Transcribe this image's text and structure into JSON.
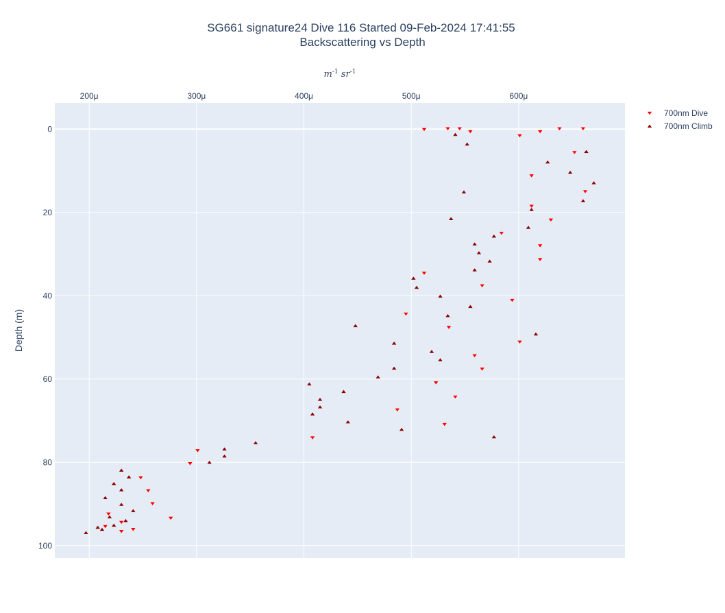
{
  "chart_data": {
    "type": "scatter",
    "title": "SG661 signature24 Dive 116 Started 09-Feb-2024 17:41:55",
    "subtitle": "Backscattering vs Depth",
    "xlabel": "m^{-1} sr^{-1}",
    "ylabel": "Depth (m)",
    "xlim": [
      0.000168,
      0.000699
    ],
    "ylim": [
      103,
      -6.3
    ],
    "x_ticks": [
      {
        "value": 0.0002,
        "label": "200μ"
      },
      {
        "value": 0.0003,
        "label": "300μ"
      },
      {
        "value": 0.0004,
        "label": "400μ"
      },
      {
        "value": 0.0005,
        "label": "500μ"
      },
      {
        "value": 0.0006,
        "label": "600μ"
      }
    ],
    "y_ticks": [
      {
        "value": 0,
        "label": "0"
      },
      {
        "value": 20,
        "label": "20"
      },
      {
        "value": 40,
        "label": "40"
      },
      {
        "value": 60,
        "label": "60"
      },
      {
        "value": 80,
        "label": "80"
      },
      {
        "value": 100,
        "label": "100"
      }
    ],
    "grid": true,
    "legend_position": "top-right",
    "x_axis_position": "top",
    "series": [
      {
        "name": "700nm Dive",
        "marker": "triangle-down",
        "color": "#ff0000",
        "points": [
          [
            0.000512,
            0.1
          ],
          [
            0.000534,
            -0.1
          ],
          [
            0.000545,
            -0.1
          ],
          [
            0.000555,
            0.6
          ],
          [
            0.00062,
            0.6
          ],
          [
            0.000638,
            -0.1
          ],
          [
            0.00066,
            -0.1
          ],
          [
            0.000601,
            1.6
          ],
          [
            0.000652,
            5.6
          ],
          [
            0.000612,
            11.2
          ],
          [
            0.000662,
            15.0
          ],
          [
            0.000612,
            18.5
          ],
          [
            0.00063,
            21.8
          ],
          [
            0.000584,
            25.0
          ],
          [
            0.00062,
            28.0
          ],
          [
            0.00062,
            31.3
          ],
          [
            0.000512,
            34.6
          ],
          [
            0.000566,
            37.6
          ],
          [
            0.000594,
            41.1
          ],
          [
            0.000495,
            44.4
          ],
          [
            0.000535,
            47.6
          ],
          [
            0.000601,
            51.1
          ],
          [
            0.000559,
            54.4
          ],
          [
            0.000566,
            57.6
          ],
          [
            0.000523,
            60.9
          ],
          [
            0.000541,
            64.3
          ],
          [
            0.000487,
            67.4
          ],
          [
            0.000531,
            70.9
          ],
          [
            0.000408,
            74.1
          ],
          [
            0.000301,
            77.2
          ],
          [
            0.000294,
            80.3
          ],
          [
            0.000248,
            83.7
          ],
          [
            0.000255,
            86.8
          ],
          [
            0.000259,
            89.9
          ],
          [
            0.000218,
            92.4
          ],
          [
            0.000276,
            93.4
          ],
          [
            0.00023,
            94.4
          ],
          [
            0.000215,
            95.4
          ],
          [
            0.000241,
            96.1
          ],
          [
            0.00023,
            96.6
          ]
        ]
      },
      {
        "name": "700nm Climb",
        "marker": "triangle-up",
        "color": "#8b0000",
        "points": [
          [
            0.000541,
            1.3
          ],
          [
            0.000552,
            3.6
          ],
          [
            0.000663,
            5.4
          ],
          [
            0.000627,
            7.9
          ],
          [
            0.000648,
            10.4
          ],
          [
            0.00067,
            12.9
          ],
          [
            0.000549,
            15.1
          ],
          [
            0.00066,
            17.2
          ],
          [
            0.000612,
            19.3
          ],
          [
            0.000537,
            21.5
          ],
          [
            0.000609,
            23.6
          ],
          [
            0.000577,
            25.7
          ],
          [
            0.000559,
            27.6
          ],
          [
            0.000563,
            29.7
          ],
          [
            0.000573,
            31.7
          ],
          [
            0.000559,
            33.8
          ],
          [
            0.000502,
            35.8
          ],
          [
            0.000505,
            38.0
          ],
          [
            0.000527,
            40.1
          ],
          [
            0.000555,
            42.6
          ],
          [
            0.000534,
            44.8
          ],
          [
            0.000448,
            47.2
          ],
          [
            0.000616,
            49.2
          ],
          [
            0.000484,
            51.4
          ],
          [
            0.000519,
            53.4
          ],
          [
            0.000527,
            55.4
          ],
          [
            0.000484,
            57.4
          ],
          [
            0.000469,
            59.5
          ],
          [
            0.000405,
            61.2
          ],
          [
            0.000437,
            63.0
          ],
          [
            0.000415,
            64.9
          ],
          [
            0.000415,
            66.7
          ],
          [
            0.000408,
            68.4
          ],
          [
            0.000441,
            70.3
          ],
          [
            0.000491,
            72.1
          ],
          [
            0.000577,
            73.9
          ],
          [
            0.000355,
            75.3
          ],
          [
            0.000326,
            76.8
          ],
          [
            0.000326,
            78.5
          ],
          [
            0.000312,
            80.0
          ],
          [
            0.00023,
            81.9
          ],
          [
            0.000237,
            83.5
          ],
          [
            0.000223,
            85.1
          ],
          [
            0.00023,
            86.6
          ],
          [
            0.000215,
            88.5
          ],
          [
            0.00023,
            90.1
          ],
          [
            0.000241,
            91.6
          ],
          [
            0.000219,
            93.1
          ],
          [
            0.000234,
            94.0
          ],
          [
            0.000223,
            95.1
          ],
          [
            0.000208,
            95.6
          ],
          [
            0.000212,
            96.1
          ],
          [
            0.000197,
            96.9
          ]
        ]
      }
    ]
  }
}
